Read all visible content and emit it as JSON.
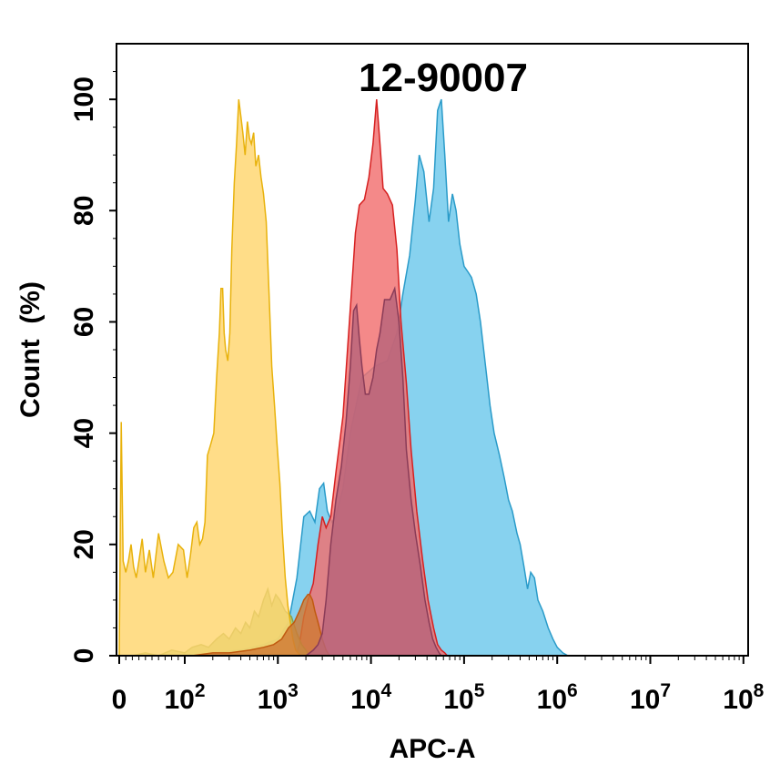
{
  "chart_data": {
    "type": "area",
    "title": "12-90007",
    "xlabel": "APC-A",
    "ylabel": "Count  (%)",
    "x_scale": "biexponential",
    "ylim": [
      0,
      110
    ],
    "yticks": [
      "0",
      "20",
      "40",
      "60",
      "80",
      "100"
    ],
    "xticks": [
      {
        "base": "0",
        "exp": ""
      },
      {
        "base": "10",
        "exp": "2"
      },
      {
        "base": "10",
        "exp": "3"
      },
      {
        "base": "10",
        "exp": "4"
      },
      {
        "base": "10",
        "exp": "5"
      },
      {
        "base": "10",
        "exp": "6"
      },
      {
        "base": "10",
        "exp": "7"
      },
      {
        "base": "10",
        "exp": "8"
      }
    ],
    "series": [
      {
        "color": "#6cc8ec",
        "stroke": "#2a9bc9",
        "points": [
          [
            150,
            0
          ],
          [
            200,
            0.5
          ],
          [
            400,
            1
          ],
          [
            700,
            2
          ],
          [
            1000,
            3
          ],
          [
            1300,
            6
          ],
          [
            1600,
            14
          ],
          [
            1900,
            25
          ],
          [
            2200,
            26
          ],
          [
            2500,
            24
          ],
          [
            2800,
            30
          ],
          [
            3100,
            31
          ],
          [
            3400,
            26
          ],
          [
            3800,
            24
          ],
          [
            4200,
            25
          ],
          [
            5000,
            30
          ],
          [
            6000,
            40
          ],
          [
            8000,
            50
          ],
          [
            11000,
            52
          ],
          [
            15000,
            53
          ],
          [
            19000,
            58
          ],
          [
            22000,
            65
          ],
          [
            26000,
            72
          ],
          [
            30000,
            82
          ],
          [
            33000,
            90
          ],
          [
            37000,
            87
          ],
          [
            42000,
            78
          ],
          [
            47000,
            84
          ],
          [
            52000,
            98
          ],
          [
            57000,
            100
          ],
          [
            62000,
            90
          ],
          [
            68000,
            78
          ],
          [
            75000,
            83
          ],
          [
            82000,
            80
          ],
          [
            90000,
            74
          ],
          [
            100000,
            70
          ],
          [
            110000,
            69
          ],
          [
            120000,
            68
          ],
          [
            135000,
            65
          ],
          [
            150000,
            60
          ],
          [
            170000,
            52
          ],
          [
            190000,
            45
          ],
          [
            210000,
            40
          ],
          [
            240000,
            36
          ],
          [
            270000,
            32
          ],
          [
            300000,
            28
          ],
          [
            330000,
            26
          ],
          [
            370000,
            22
          ],
          [
            400000,
            20
          ],
          [
            440000,
            16
          ],
          [
            480000,
            12
          ],
          [
            520000,
            15
          ],
          [
            570000,
            14
          ],
          [
            620000,
            10
          ],
          [
            700000,
            8
          ],
          [
            800000,
            5
          ],
          [
            900000,
            3
          ],
          [
            1000000,
            1.5
          ],
          [
            1150000,
            0.5
          ],
          [
            1300000,
            0
          ]
        ]
      },
      {
        "color": "#f26f6f",
        "stroke": "#d62020",
        "points": [
          [
            1500,
            0
          ],
          [
            1600,
            0.5
          ],
          [
            1700,
            2
          ],
          [
            1900,
            7
          ],
          [
            2100,
            10
          ],
          [
            2400,
            13
          ],
          [
            2700,
            20
          ],
          [
            3000,
            25
          ],
          [
            3300,
            23
          ],
          [
            3700,
            25
          ],
          [
            4200,
            33
          ],
          [
            5000,
            43
          ],
          [
            5600,
            55
          ],
          [
            6200,
            66
          ],
          [
            6800,
            76
          ],
          [
            7500,
            81
          ],
          [
            8500,
            82
          ],
          [
            9500,
            86
          ],
          [
            10500,
            92
          ],
          [
            11500,
            100
          ],
          [
            12500,
            92
          ],
          [
            13500,
            84
          ],
          [
            15000,
            83
          ],
          [
            17000,
            81
          ],
          [
            19000,
            73
          ],
          [
            21000,
            60
          ],
          [
            24000,
            49
          ],
          [
            27000,
            37
          ],
          [
            31000,
            26
          ],
          [
            36000,
            17
          ],
          [
            41000,
            10
          ],
          [
            47000,
            5
          ],
          [
            52000,
            2
          ],
          [
            57000,
            1
          ],
          [
            62000,
            0.5
          ],
          [
            66000,
            0
          ]
        ]
      },
      {
        "color": "#a7c773",
        "stroke": "#8aa04a",
        "points": [
          [
            20,
            0
          ],
          [
            40,
            0.5
          ],
          [
            60,
            0
          ],
          [
            80,
            1
          ],
          [
            100,
            0.5
          ],
          [
            120,
            1.5
          ],
          [
            150,
            2
          ],
          [
            180,
            1.5
          ],
          [
            220,
            3
          ],
          [
            260,
            4
          ],
          [
            300,
            3
          ],
          [
            350,
            5
          ],
          [
            400,
            4
          ],
          [
            450,
            6
          ],
          [
            500,
            5
          ],
          [
            560,
            8
          ],
          [
            620,
            7
          ],
          [
            700,
            10
          ],
          [
            780,
            12
          ],
          [
            860,
            9
          ],
          [
            950,
            11
          ],
          [
            1050,
            10
          ],
          [
            1200,
            8
          ],
          [
            1400,
            7
          ],
          [
            1600,
            4
          ],
          [
            1800,
            2
          ],
          [
            2000,
            1
          ],
          [
            2200,
            0
          ]
        ]
      },
      {
        "color": "#ffd56e",
        "stroke": "#e8b20c",
        "points": [
          [
            0,
            0
          ],
          [
            3,
            42
          ],
          [
            6,
            17
          ],
          [
            10,
            15
          ],
          [
            14,
            17
          ],
          [
            18,
            20
          ],
          [
            22,
            16
          ],
          [
            26,
            14
          ],
          [
            30,
            17
          ],
          [
            35,
            21
          ],
          [
            40,
            15
          ],
          [
            46,
            19
          ],
          [
            52,
            14
          ],
          [
            60,
            22
          ],
          [
            68,
            17
          ],
          [
            75,
            14
          ],
          [
            82,
            15
          ],
          [
            90,
            20
          ],
          [
            98,
            19
          ],
          [
            106,
            14
          ],
          [
            115,
            18
          ],
          [
            125,
            23
          ],
          [
            135,
            24
          ],
          [
            145,
            20
          ],
          [
            155,
            21
          ],
          [
            165,
            24
          ],
          [
            175,
            36
          ],
          [
            190,
            38
          ],
          [
            205,
            40
          ],
          [
            220,
            50
          ],
          [
            235,
            58
          ],
          [
            245,
            66
          ],
          [
            255,
            66
          ],
          [
            265,
            58
          ],
          [
            275,
            55
          ],
          [
            290,
            53
          ],
          [
            305,
            58
          ],
          [
            320,
            73
          ],
          [
            340,
            85
          ],
          [
            360,
            92
          ],
          [
            380,
            100
          ],
          [
            400,
            97
          ],
          [
            420,
            94
          ],
          [
            445,
            90
          ],
          [
            470,
            96
          ],
          [
            495,
            93
          ],
          [
            520,
            92
          ],
          [
            550,
            94
          ],
          [
            580,
            88
          ],
          [
            620,
            90
          ],
          [
            660,
            86
          ],
          [
            700,
            83
          ],
          [
            750,
            78
          ],
          [
            800,
            66
          ],
          [
            860,
            52
          ],
          [
            920,
            45
          ],
          [
            980,
            38
          ],
          [
            1050,
            31
          ],
          [
            1120,
            22
          ],
          [
            1200,
            14
          ],
          [
            1280,
            9
          ],
          [
            1360,
            6
          ],
          [
            1450,
            3
          ],
          [
            1550,
            1
          ],
          [
            1650,
            0.5
          ],
          [
            1750,
            0
          ]
        ]
      },
      {
        "color": "#d07a34",
        "stroke": "#c05a10",
        "points": [
          [
            120,
            0
          ],
          [
            200,
            0.5
          ],
          [
            300,
            0.5
          ],
          [
            500,
            1
          ],
          [
            700,
            1.5
          ],
          [
            900,
            2
          ],
          [
            1100,
            3
          ],
          [
            1300,
            5
          ],
          [
            1500,
            6
          ],
          [
            1700,
            8
          ],
          [
            1900,
            10
          ],
          [
            2100,
            11
          ],
          [
            2200,
            11
          ],
          [
            2350,
            10
          ],
          [
            2500,
            8
          ],
          [
            2700,
            6
          ],
          [
            3000,
            3
          ],
          [
            3300,
            1
          ],
          [
            3600,
            0
          ]
        ]
      },
      {
        "color": "#b8647a",
        "stroke": "#8a3c58",
        "points": [
          [
            2000,
            0
          ],
          [
            2200,
            0.5
          ],
          [
            2400,
            1
          ],
          [
            2700,
            2
          ],
          [
            3000,
            4
          ],
          [
            3300,
            10
          ],
          [
            3700,
            20
          ],
          [
            4200,
            28
          ],
          [
            4800,
            34
          ],
          [
            5400,
            42
          ],
          [
            6000,
            52
          ],
          [
            6500,
            62
          ],
          [
            7000,
            63
          ],
          [
            7500,
            57
          ],
          [
            8000,
            52
          ],
          [
            8700,
            47
          ],
          [
            9500,
            47
          ],
          [
            10500,
            50
          ],
          [
            11500,
            55
          ],
          [
            12500,
            58
          ],
          [
            14000,
            64
          ],
          [
            16000,
            64
          ],
          [
            18000,
            66
          ],
          [
            20000,
            60
          ],
          [
            22000,
            50
          ],
          [
            24000,
            37
          ],
          [
            27000,
            28
          ],
          [
            30000,
            22
          ],
          [
            34000,
            16
          ],
          [
            38000,
            10
          ],
          [
            42000,
            6
          ],
          [
            46000,
            3
          ],
          [
            50000,
            1.5
          ],
          [
            54000,
            0.5
          ],
          [
            57000,
            0
          ]
        ]
      }
    ]
  }
}
